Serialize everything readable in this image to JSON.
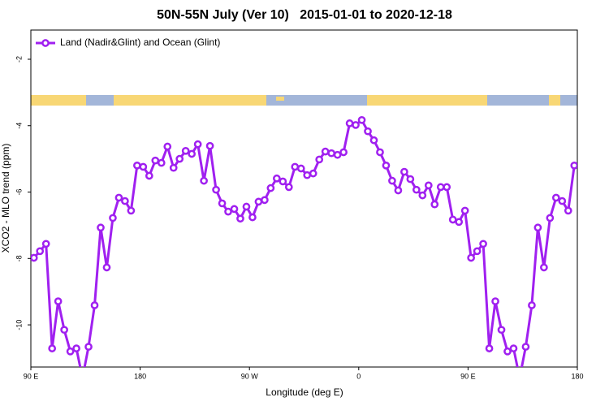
{
  "chart_data": {
    "type": "line",
    "title": "50N-55N July (Ver 10)   2015-01-01 to 2020-12-18",
    "x_label": "Longitude (deg E)",
    "y_label": "XCO2 - MLO trend (ppm)",
    "x": [
      92.5,
      97.5,
      102.5,
      107.5,
      112.5,
      117.5,
      122.5,
      127.5,
      132.5,
      137.5,
      142.5,
      147.5,
      152.5,
      157.5,
      162.5,
      167.5,
      172.5,
      177.5,
      182.5,
      187.5,
      192.5,
      197.5,
      202.5,
      207.5,
      212.5,
      217.5,
      222.5,
      227.5,
      232.5,
      237.5,
      242.5,
      247.5,
      252.5,
      257.5,
      262.5,
      267.5,
      272.5,
      277.5,
      282.5,
      287.5,
      292.5,
      297.5,
      302.5,
      307.5,
      312.5,
      317.5,
      322.5,
      327.5,
      332.5,
      337.5,
      342.5,
      347.5,
      352.5,
      357.5,
      362.5,
      367.5,
      372.5,
      377.5,
      382.5,
      387.5,
      392.5,
      397.5,
      402.5,
      407.5,
      412.5,
      417.5,
      422.5,
      427.5,
      432.5,
      437.5,
      442.5,
      447.5,
      452.5,
      457.5,
      462.5,
      467.5,
      472.5,
      477.5,
      482.5,
      487.5,
      492.5,
      497.5,
      502.5,
      507.5,
      512.5,
      517.5,
      522.5,
      527.5,
      532.5,
      537.5
    ],
    "series": [
      {
        "name": "Land (Nadir&Glint) and Ocean (Glint)",
        "color": "#a020f0",
        "values": [
          -7.98,
          -7.78,
          -7.56,
          -10.71,
          -9.29,
          -10.15,
          -10.8,
          -10.71,
          -11.6,
          -10.66,
          -9.41,
          -7.07,
          -8.27,
          -6.78,
          -6.17,
          -6.27,
          -6.56,
          -5.2,
          -5.24,
          -5.51,
          -5.05,
          -5.12,
          -4.63,
          -5.27,
          -5.0,
          -4.76,
          -4.85,
          -4.56,
          -5.66,
          -4.61,
          -5.93,
          -6.34,
          -6.59,
          -6.51,
          -6.8,
          -6.44,
          -6.76,
          -6.29,
          -6.24,
          -5.88,
          -5.59,
          -5.68,
          -5.85,
          -5.24,
          -5.29,
          -5.49,
          -5.44,
          -5.02,
          -4.78,
          -4.83,
          -4.88,
          -4.8,
          -3.93,
          -3.98,
          -3.83,
          -4.17,
          -4.44,
          -4.8,
          -5.2,
          -5.66,
          -5.95,
          -5.39,
          -5.61,
          -5.93,
          -6.1,
          -5.8,
          -6.37,
          -5.85,
          -5.85,
          -6.83,
          -6.9,
          -6.56,
          -7.98,
          -7.78,
          -7.56,
          -10.71,
          -9.29,
          -10.15,
          -10.8,
          -10.71,
          -11.6,
          -10.66,
          -9.41,
          -7.07,
          -8.27,
          -6.78,
          -6.17,
          -6.27,
          -6.56,
          -5.2
        ]
      }
    ],
    "xlim": [
      90,
      540
    ],
    "xticks": [
      {
        "value": 90,
        "label": "90 E"
      },
      {
        "value": 180,
        "label": "180"
      },
      {
        "value": 270,
        "label": "90 W"
      },
      {
        "value": 360,
        "label": "0"
      },
      {
        "value": 450,
        "label": "90 E"
      },
      {
        "value": 540,
        "label": "180"
      }
    ],
    "ylim": [
      -11.27,
      -1.12
    ],
    "yticks": [
      -2,
      -4,
      -6,
      -8,
      -10
    ],
    "legend": "top-left"
  }
}
